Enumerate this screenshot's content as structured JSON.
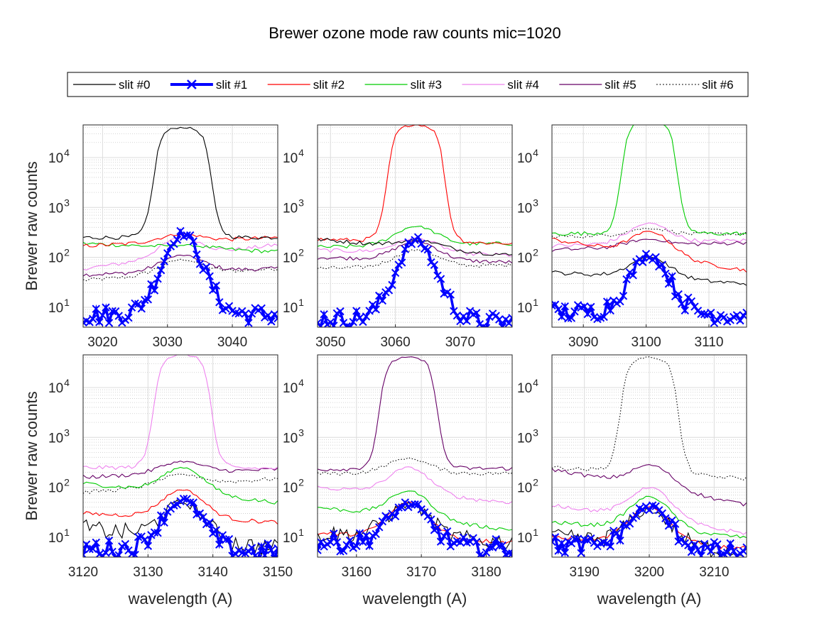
{
  "figure": {
    "title": "Brewer ozone mode raw counts  mic=1020"
  },
  "colors": {
    "slit0": "#000000",
    "slit1": "#0000ff",
    "slit2": "#ff0000",
    "slit3": "#00cc00",
    "slit4": "#ee82ee",
    "slit5": "#660066",
    "slit6": "#000000"
  },
  "legend": [
    {
      "label": "slit #0",
      "color": "#000000",
      "style": "solid"
    },
    {
      "label": "slit #1",
      "color": "#0000ff",
      "style": "thick-x"
    },
    {
      "label": "slit #2",
      "color": "#ff0000",
      "style": "solid"
    },
    {
      "label": "slit #3",
      "color": "#00cc00",
      "style": "solid"
    },
    {
      "label": "slit #4",
      "color": "#ee82ee",
      "style": "solid"
    },
    {
      "label": "slit #5",
      "color": "#660066",
      "style": "solid"
    },
    {
      "label": "slit #6",
      "color": "#000000",
      "style": "dotted"
    }
  ],
  "chart_data": [
    {
      "type": "line",
      "xlabel": "",
      "ylabel": "Brewer raw counts",
      "xlim": [
        3017,
        3047
      ],
      "ylim": [
        4,
        45000
      ],
      "yscale": "log",
      "xticks": [
        3020,
        3030,
        3040
      ],
      "yticks": [
        "10^1",
        "10^2",
        "10^3",
        "10^4"
      ],
      "peak_slit": 0,
      "center": 3032.3,
      "peak": 40000,
      "half_width": 4.2,
      "series": [
        {
          "slit": 0,
          "base_left": 250,
          "base_right": 250,
          "peak": 40000
        },
        {
          "slit": 1,
          "base_left": 7,
          "base_right": 7,
          "peak": 300
        },
        {
          "slit": 2,
          "base_left": 170,
          "base_right": 250,
          "peak": 290
        },
        {
          "slit": 3,
          "base_left": 190,
          "base_right": 130,
          "peak": 175
        },
        {
          "slit": 4,
          "base_left": 60,
          "base_right": 180,
          "peak": 250
        },
        {
          "slit": 5,
          "base_left": 45,
          "base_right": 60,
          "peak": 110
        },
        {
          "slit": 6,
          "base_left": 35,
          "base_right": 60,
          "peak": 90
        }
      ]
    },
    {
      "type": "line",
      "xlabel": "",
      "ylabel": "",
      "xlim": [
        3048,
        3078
      ],
      "ylim": [
        4,
        45000
      ],
      "yscale": "log",
      "xticks": [
        3050,
        3060,
        3070
      ],
      "yticks": [
        "10^1",
        "10^2",
        "10^3",
        "10^4"
      ],
      "peak_slit": 2,
      "center": 3063.2,
      "peak": 45000,
      "half_width": 4.2,
      "series": [
        {
          "slit": 0,
          "base_left": 230,
          "base_right": 110,
          "peak": 220
        },
        {
          "slit": 1,
          "base_left": 6,
          "base_right": 5,
          "peak": 220
        },
        {
          "slit": 2,
          "base_left": 230,
          "base_right": 190,
          "peak": 45000
        },
        {
          "slit": 3,
          "base_left": 160,
          "base_right": 190,
          "peak": 420
        },
        {
          "slit": 4,
          "base_left": 140,
          "base_right": 110,
          "peak": 240
        },
        {
          "slit": 5,
          "base_left": 100,
          "base_right": 80,
          "peak": 210
        },
        {
          "slit": 6,
          "base_left": 60,
          "base_right": 70,
          "peak": 140
        }
      ]
    },
    {
      "type": "line",
      "xlabel": "",
      "ylabel": "",
      "xlim": [
        3085,
        3116
      ],
      "ylim": [
        4,
        45000
      ],
      "yscale": "log",
      "xticks": [
        3090,
        3100,
        3110
      ],
      "yticks": [
        "10^1",
        "10^2",
        "10^3",
        "10^4"
      ],
      "peak_slit": 3,
      "center": 3100.5,
      "peak": 55000,
      "half_width": 4.2,
      "series": [
        {
          "slit": 0,
          "base_left": 50,
          "base_right": 30,
          "peak": 100
        },
        {
          "slit": 1,
          "base_left": 8,
          "base_right": 7,
          "peak": 110
        },
        {
          "slit": 2,
          "base_left": 230,
          "base_right": 55,
          "peak": 330
        },
        {
          "slit": 3,
          "base_left": 300,
          "base_right": 300,
          "peak": 55000
        },
        {
          "slit": 4,
          "base_left": 170,
          "base_right": 220,
          "peak": 480
        },
        {
          "slit": 5,
          "base_left": 140,
          "base_right": 200,
          "peak": 230
        },
        {
          "slit": 6,
          "base_left": 260,
          "base_right": 300,
          "peak": 380
        }
      ]
    },
    {
      "type": "line",
      "xlabel": "wavelength (A)",
      "ylabel": "Brewer raw counts",
      "xlim": [
        3120,
        3150
      ],
      "ylim": [
        4,
        45000
      ],
      "yscale": "log",
      "xticks": [
        3120,
        3130,
        3140,
        3150
      ],
      "yticks": [
        "10^1",
        "10^2",
        "10^3",
        "10^4"
      ],
      "peak_slit": 4,
      "center": 3135.3,
      "peak": 45000,
      "half_width": 4.2,
      "series": [
        {
          "slit": 0,
          "base_left": 15,
          "base_right": 6,
          "peak": 50
        },
        {
          "slit": 1,
          "base_left": 6,
          "base_right": 5,
          "peak": 55
        },
        {
          "slit": 2,
          "base_left": 30,
          "base_right": 20,
          "peak": 90
        },
        {
          "slit": 3,
          "base_left": 120,
          "base_right": 50,
          "peak": 250
        },
        {
          "slit": 4,
          "base_left": 250,
          "base_right": 240,
          "peak": 45000
        },
        {
          "slit": 5,
          "base_left": 160,
          "base_right": 230,
          "peak": 330
        },
        {
          "slit": 6,
          "base_left": 80,
          "base_right": 150,
          "peak": 180
        }
      ]
    },
    {
      "type": "line",
      "xlabel": "wavelength (A)",
      "ylabel": "",
      "xlim": [
        3154,
        3184
      ],
      "ylim": [
        4,
        45000
      ],
      "yscale": "log",
      "xticks": [
        3160,
        3170,
        3180
      ],
      "yticks": [
        "10^1",
        "10^2",
        "10^3",
        "10^4"
      ],
      "peak_slit": 5,
      "center": 3168,
      "peak": 40000,
      "half_width": 4.2,
      "series": [
        {
          "slit": 0,
          "base_left": 12,
          "base_right": 8,
          "peak": 45
        },
        {
          "slit": 1,
          "base_left": 8,
          "base_right": 6,
          "peak": 45
        },
        {
          "slit": 2,
          "base_left": 12,
          "base_right": 8,
          "peak": 50
        },
        {
          "slit": 3,
          "base_left": 40,
          "base_right": 14,
          "peak": 85
        },
        {
          "slit": 4,
          "base_left": 100,
          "base_right": 50,
          "peak": 250
        },
        {
          "slit": 5,
          "base_left": 230,
          "base_right": 240,
          "peak": 40000
        },
        {
          "slit": 6,
          "base_left": 190,
          "base_right": 190,
          "peak": 380
        }
      ]
    },
    {
      "type": "line",
      "xlabel": "wavelength (A)",
      "ylabel": "",
      "xlim": [
        3185,
        3215
      ],
      "ylim": [
        4,
        45000
      ],
      "yscale": "log",
      "xticks": [
        3190,
        3200,
        3210
      ],
      "yticks": [
        "10^1",
        "10^2",
        "10^3",
        "10^4"
      ],
      "peak_slit": 6,
      "center": 3200,
      "peak": 40000,
      "half_width": 4.2,
      "series": [
        {
          "slit": 0,
          "base_left": 10,
          "base_right": 5,
          "peak": 35
        },
        {
          "slit": 1,
          "base_left": 7,
          "base_right": 5,
          "peak": 40
        },
        {
          "slit": 2,
          "base_left": 10,
          "base_right": 6,
          "peak": 40
        },
        {
          "slit": 3,
          "base_left": 20,
          "base_right": 10,
          "peak": 65
        },
        {
          "slit": 4,
          "base_left": 45,
          "base_right": 12,
          "peak": 100
        },
        {
          "slit": 5,
          "base_left": 230,
          "base_right": 45,
          "peak": 280
        },
        {
          "slit": 6,
          "base_left": 250,
          "base_right": 150,
          "peak": 40000
        }
      ]
    }
  ]
}
